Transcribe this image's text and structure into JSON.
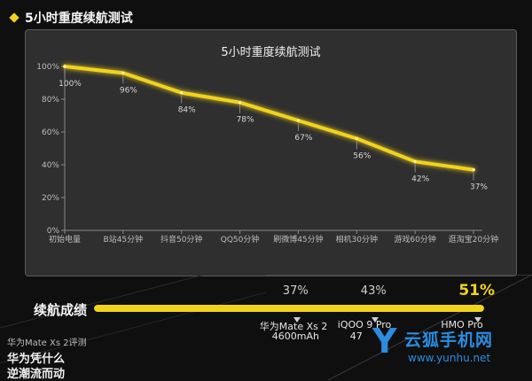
{
  "header": {
    "title": "5小时重度续航测试"
  },
  "chart_data": {
    "type": "line",
    "title": "5小时重度续航测试",
    "categories": [
      "初始电量",
      "B站45分钟",
      "抖音50分钟",
      "QQ50分钟",
      "刷微博45分钟",
      "相机30分钟",
      "游戏60分钟",
      "逛淘宝20分钟"
    ],
    "values": [
      100,
      96,
      84,
      78,
      67,
      56,
      42,
      37
    ],
    "data_labels": [
      "100%",
      "96%",
      "84%",
      "78%",
      "67%",
      "56%",
      "42%",
      "37%"
    ],
    "yticks": [
      "0%",
      "20%",
      "40%",
      "60%",
      "80%",
      "100%"
    ],
    "ylim": [
      0,
      100
    ],
    "line_color": "#f2d31c"
  },
  "endurance": {
    "label": "续航成绩",
    "value": 51,
    "markers": [
      {
        "value": 37,
        "pct": "37%",
        "name": "华为Mate Xs 2",
        "cap": "4600mAh"
      },
      {
        "value": 43,
        "pct": "43%",
        "name": "iQOO 9 Pro",
        "cap": "47"
      },
      {
        "value": 51,
        "pct": "51%",
        "name": "HMO Pro",
        "cap": ""
      }
    ]
  },
  "review": {
    "subtitle": "华为Mate Xs 2评测",
    "line1": "华为凭什么",
    "line2": "逆潮流而动"
  },
  "watermark": {
    "logo": "Y",
    "name": "云狐手机网",
    "url": "www.yunhu.net"
  },
  "colors": {
    "accent": "#f2d31c",
    "watermark": "#2a8de0"
  }
}
